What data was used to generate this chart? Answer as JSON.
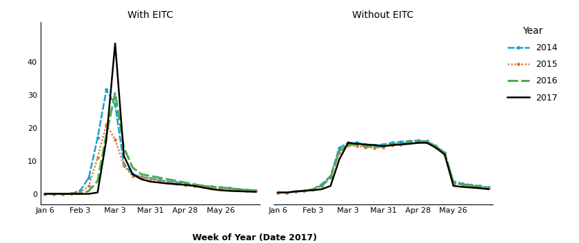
{
  "title_left": "With EITC",
  "title_right": "Without EITC",
  "xlabel": "Week of Year (Date 2017)",
  "ylim_left": [
    -3,
    52
  ],
  "ylim_right": [
    -3,
    52
  ],
  "yticks_left": [
    0,
    10,
    20,
    30,
    40
  ],
  "yticks_right": [
    0,
    10,
    20,
    30,
    40
  ],
  "xtick_labels": [
    "Jan 6",
    "Feb 3",
    "Mar 3",
    "Mar 31",
    "Apr 28",
    "May 26"
  ],
  "legend_title": "Year",
  "colors": {
    "2014": "#1a9fce",
    "2015": "#e07b39",
    "2016": "#4daa4b",
    "2017": "#000000"
  },
  "x_weeks": [
    0,
    1,
    2,
    3,
    4,
    5,
    6,
    7,
    8,
    9,
    10,
    11,
    12,
    13,
    14,
    15,
    16,
    17,
    18,
    19,
    20,
    21,
    22,
    23,
    24
  ],
  "with_eitc": {
    "2017": [
      0.1,
      0.1,
      0.1,
      0.1,
      0.1,
      0.1,
      0.5,
      16.5,
      45.5,
      11.5,
      6.0,
      4.5,
      3.8,
      3.5,
      3.2,
      3.0,
      2.8,
      2.5,
      2.0,
      1.5,
      1.2,
      1.0,
      0.9,
      0.8,
      0.7
    ],
    "2016": [
      0.1,
      0.1,
      0.1,
      0.1,
      0.1,
      1.0,
      4.0,
      18.0,
      30.5,
      14.0,
      8.0,
      6.0,
      5.5,
      5.0,
      4.5,
      4.0,
      3.5,
      3.0,
      2.5,
      2.2,
      2.0,
      1.8,
      1.5,
      1.3,
      1.1
    ],
    "2015": [
      0.1,
      0.1,
      0.1,
      0.2,
      0.5,
      2.5,
      11.0,
      21.0,
      16.5,
      8.5,
      5.5,
      5.0,
      4.5,
      4.0,
      3.5,
      3.2,
      2.8,
      2.5,
      2.2,
      2.0,
      1.8,
      1.5,
      1.3,
      1.1,
      1.0
    ],
    "2014": [
      0.1,
      0.1,
      0.1,
      0.2,
      1.0,
      5.0,
      17.0,
      31.5,
      27.0,
      9.0,
      6.0,
      5.2,
      4.8,
      4.3,
      3.8,
      3.5,
      3.2,
      2.8,
      2.5,
      2.2,
      2.0,
      1.8,
      1.5,
      1.3,
      1.1
    ]
  },
  "without_eitc": {
    "2017": [
      0.5,
      0.5,
      0.8,
      1.0,
      1.2,
      1.5,
      2.5,
      10.5,
      15.5,
      15.2,
      15.0,
      14.8,
      14.5,
      14.8,
      15.0,
      15.2,
      15.5,
      15.5,
      14.0,
      12.0,
      2.5,
      2.2,
      2.0,
      1.8,
      1.5
    ],
    "2016": [
      0.5,
      0.5,
      0.8,
      1.0,
      1.5,
      2.5,
      5.0,
      13.0,
      15.0,
      15.0,
      14.5,
      14.2,
      14.5,
      15.0,
      15.2,
      15.5,
      16.0,
      15.8,
      14.5,
      12.5,
      3.5,
      3.0,
      2.5,
      2.2,
      1.8
    ],
    "2015": [
      0.5,
      0.5,
      0.8,
      1.0,
      1.5,
      2.5,
      5.0,
      12.5,
      14.8,
      14.5,
      14.2,
      14.0,
      14.2,
      14.8,
      15.0,
      15.5,
      15.8,
      15.5,
      14.2,
      12.0,
      3.2,
      2.8,
      2.5,
      2.2,
      1.8
    ],
    "2014": [
      0.5,
      0.5,
      0.8,
      1.0,
      1.5,
      3.0,
      5.5,
      14.0,
      15.5,
      15.5,
      15.0,
      14.8,
      15.0,
      15.5,
      15.8,
      16.0,
      16.2,
      16.0,
      14.5,
      12.5,
      3.8,
      3.2,
      2.8,
      2.5,
      2.0
    ]
  }
}
